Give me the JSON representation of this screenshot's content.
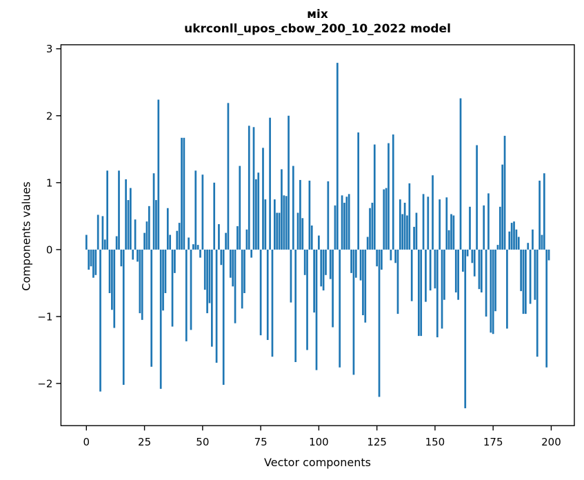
{
  "chart_data": {
    "type": "bar",
    "title_line1": "міх",
    "title_line2": "ukrconll_upos_cbow_200_10_2022 model",
    "title": "міх\nukrconll_upos_cbow_200_10_2022 model",
    "xlabel": "Vector components",
    "ylabel": "Components values",
    "x_tick_values": [
      0,
      25,
      50,
      75,
      100,
      125,
      150,
      175,
      200
    ],
    "x_tick_labels": [
      "0",
      "25",
      "50",
      "75",
      "100",
      "125",
      "150",
      "175",
      "200"
    ],
    "y_tick_values": [
      3,
      2,
      1,
      0,
      -1,
      -2
    ],
    "y_tick_labels": [
      "3",
      "2",
      "1",
      "0",
      "−1",
      "−2"
    ],
    "xlim": [
      -10.95,
      209.95
    ],
    "ylim": [
      -2.63,
      3.06
    ],
    "grid": false,
    "legend_position": "none",
    "bar_color": "#1f77b4",
    "axis_color": "#000000",
    "bar_width_units": 0.8,
    "x_is_index": true,
    "values": [
      0.22,
      -0.3,
      -0.25,
      -0.42,
      -0.38,
      0.52,
      -2.12,
      0.5,
      0.15,
      1.18,
      -0.65,
      -0.9,
      -1.17,
      0.2,
      1.18,
      -0.25,
      -2.02,
      1.05,
      0.74,
      0.92,
      -0.15,
      0.45,
      -0.18,
      -0.95,
      -1.05,
      0.25,
      0.42,
      0.65,
      -1.75,
      1.14,
      0.74,
      2.24,
      -2.08,
      -0.91,
      -0.65,
      0.62,
      0.22,
      -1.15,
      -0.35,
      0.28,
      0.4,
      1.67,
      1.67,
      -1.37,
      0.18,
      -1.2,
      0.08,
      1.18,
      0.07,
      -0.12,
      1.12,
      -0.6,
      -0.95,
      -0.8,
      -1.45,
      1.0,
      -1.69,
      0.38,
      -0.23,
      -2.02,
      0.25,
      2.19,
      -0.42,
      -0.55,
      -1.1,
      0.35,
      1.25,
      -0.88,
      -0.65,
      0.3,
      1.85,
      -0.12,
      1.83,
      1.05,
      1.15,
      -1.28,
      1.52,
      0.75,
      -1.35,
      1.97,
      -1.6,
      0.75,
      0.55,
      0.55,
      1.2,
      0.81,
      0.8,
      2.0,
      -0.79,
      1.25,
      -1.68,
      0.55,
      1.04,
      0.47,
      -0.38,
      -1.5,
      1.03,
      0.36,
      -0.94,
      -1.8,
      0.21,
      -0.55,
      -0.61,
      -0.38,
      1.02,
      -0.44,
      -1.16,
      0.66,
      2.79,
      -1.76,
      0.81,
      0.7,
      0.79,
      0.83,
      -0.35,
      -1.87,
      -0.42,
      1.75,
      -0.46,
      -0.98,
      -1.09,
      0.19,
      0.62,
      0.7,
      1.57,
      -0.25,
      -2.2,
      -0.3,
      0.9,
      0.92,
      1.59,
      -0.16,
      1.72,
      -0.2,
      -0.96,
      0.75,
      0.53,
      0.7,
      0.51,
      0.99,
      -0.77,
      0.34,
      0.55,
      -1.29,
      -1.29,
      0.83,
      -0.78,
      0.79,
      -0.61,
      1.11,
      -0.58,
      -1.31,
      0.75,
      -1.18,
      -0.75,
      0.78,
      0.29,
      0.53,
      0.51,
      -0.64,
      -0.75,
      2.26,
      -0.33,
      -2.37,
      -0.1,
      0.64,
      -0.2,
      -0.4,
      1.56,
      -0.59,
      -0.64,
      0.66,
      -1.0,
      0.84,
      -1.24,
      -1.26,
      -0.92,
      0.07,
      0.64,
      1.27,
      1.7,
      -1.18,
      0.27,
      0.4,
      0.42,
      0.3,
      0.19,
      -0.62,
      -0.96,
      -0.96,
      0.1,
      -0.81,
      0.3,
      -0.75,
      -1.6,
      1.03,
      0.22,
      1.14,
      -1.76,
      -0.16
    ]
  }
}
